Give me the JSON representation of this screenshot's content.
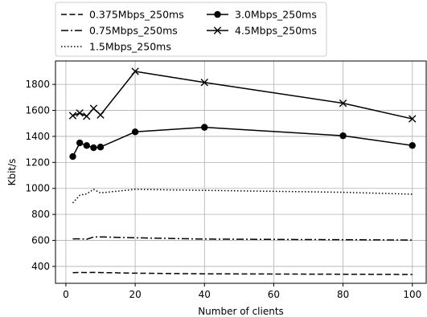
{
  "chart_data": {
    "type": "line",
    "xlabel": "Number of clients",
    "ylabel": "Kbit/s",
    "xlim": [
      -3,
      104
    ],
    "ylim": [
      270,
      1980
    ],
    "xticks": [
      0,
      20,
      40,
      60,
      80,
      100
    ],
    "yticks": [
      400,
      600,
      800,
      1000,
      1200,
      1400,
      1600,
      1800
    ],
    "grid": true,
    "legend_placement": "top-left",
    "series": [
      {
        "name": "0.375Mbps_250ms",
        "line_style": "dashed",
        "marker": "none",
        "color": "#000000",
        "x": [
          2,
          4,
          6,
          8,
          10,
          20,
          40,
          80,
          100
        ],
        "y": [
          352,
          354,
          353,
          354,
          353,
          348,
          343,
          340,
          338
        ]
      },
      {
        "name": "0.75Mbps_250ms",
        "line_style": "dashdot",
        "marker": "none",
        "color": "#000000",
        "x": [
          2,
          4,
          6,
          8,
          10,
          20,
          40,
          80,
          100
        ],
        "y": [
          612,
          612,
          609,
          626,
          627,
          620,
          610,
          605,
          603
        ]
      },
      {
        "name": "1.5Mbps_250ms",
        "line_style": "dotted",
        "marker": "none",
        "color": "#000000",
        "x": [
          2,
          4,
          6,
          8,
          10,
          20,
          40,
          80,
          100
        ],
        "y": [
          888,
          948,
          958,
          993,
          965,
          993,
          985,
          970,
          955
        ]
      },
      {
        "name": "3.0Mbps_250ms",
        "line_style": "solid",
        "marker": "circle",
        "color": "#000000",
        "x": [
          2,
          4,
          6,
          8,
          10,
          20,
          40,
          80,
          100
        ],
        "y": [
          1245,
          1350,
          1330,
          1313,
          1318,
          1435,
          1470,
          1405,
          1330
        ]
      },
      {
        "name": "4.5Mbps_250ms",
        "line_style": "solid",
        "marker": "x",
        "color": "#000000",
        "x": [
          2,
          4,
          6,
          8,
          10,
          20,
          40,
          80,
          100
        ],
        "y": [
          1560,
          1580,
          1555,
          1615,
          1565,
          1900,
          1815,
          1655,
          1535
        ]
      }
    ]
  }
}
